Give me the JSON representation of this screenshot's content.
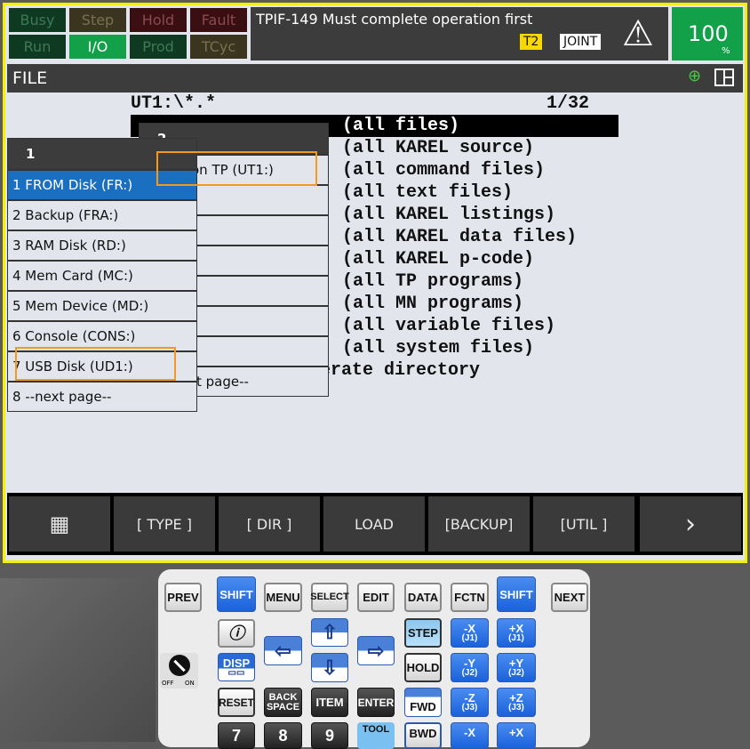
{
  "status": {
    "row1": [
      "Busy",
      "Step",
      "Hold",
      "Fault"
    ],
    "row2": [
      "Run",
      "I/O",
      "Prod",
      "TCyc"
    ]
  },
  "message": "TPIF-149 Must complete operation first",
  "mode_badge": "T2",
  "coord_badge": "JOINT",
  "override": {
    "value": "100",
    "unit": "%"
  },
  "screen": {
    "title": "FILE"
  },
  "path": "UT1:\\*.*",
  "page": "1/32",
  "file_list": [
    "(all files)",
    "(all KAREL source)",
    "(all command files)",
    "(all text files)",
    "(all KAREL listings)",
    "(all KAREL data files)",
    "(all KAREL p-code)",
    "(all TP programs)",
    "(all MN programs)",
    "(all variable files)",
    "(all system files)"
  ],
  "file_list_partial": "erate directory",
  "menu2": {
    "header": "2",
    "items": [
      "on TP (UT1:)",
      "",
      "",
      "",
      "",
      "",
      "",
      "t page--"
    ]
  },
  "menu1": {
    "header": "1",
    "items": [
      "1 FROM Disk (FR:)",
      "2 Backup (FRA:)",
      "3 RAM Disk (RD:)",
      "4 Mem Card (MC:)",
      "5 Mem Device (MD:)",
      "6 Console (CONS:)",
      "7 USB Disk (UD1:)",
      "8 --next page--"
    ]
  },
  "fkeys": [
    "[ TYPE ]",
    "[ DIR ]",
    "LOAD",
    "[BACKUP]",
    "[UTIL ]"
  ],
  "keys": {
    "prev": "PREV",
    "shift": "SHIFT",
    "menu": "MENU",
    "select": "SELECT",
    "edit": "EDIT",
    "data": "DATA",
    "fctn": "FCTN",
    "next": "NEXT",
    "disp": "DISP",
    "step": "STEP",
    "hold": "HOLD",
    "reset": "RESET",
    "back1": "BACK",
    "back2": "SPACE",
    "item": "ITEM",
    "enter": "ENTER",
    "fwd": "FWD",
    "bwd": "BWD",
    "tool": "TOOL",
    "n7": "7",
    "n8": "8",
    "n9": "9",
    "mx": "-X",
    "px": "+X",
    "j1": "(J1)",
    "my": "-Y",
    "py": "+Y",
    "j2": "(J2)",
    "mz": "-Z",
    "pz": "+Z",
    "j3": "(J3)",
    "off": "OFF",
    "on": "ON"
  },
  "colors": {
    "selected": "#1a6fc0",
    "highlight_box": "#f39a1c",
    "override_bg": "#12a048",
    "frame": "#f4f000"
  }
}
